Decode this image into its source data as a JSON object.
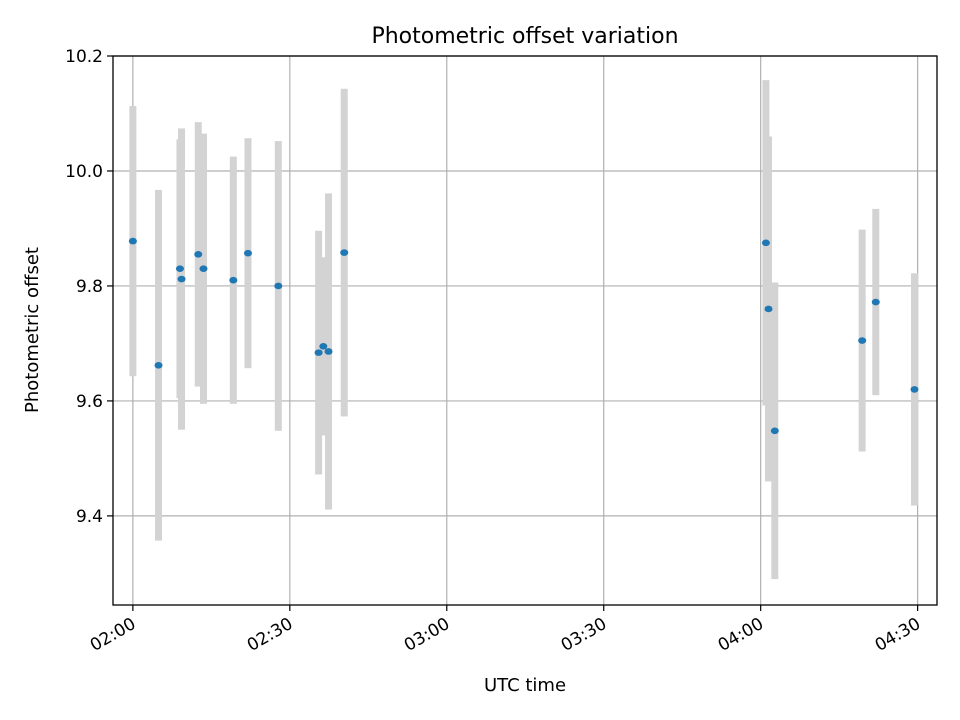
{
  "chart_data": {
    "type": "scatter",
    "title": "Photometric offset variation",
    "xlabel": "UTC time",
    "ylabel": "Photometric offset",
    "x_unit": "time of day (hours)",
    "xlim": [
      1.9367,
      4.5617
    ],
    "ylim": [
      9.245,
      10.2
    ],
    "x_ticks": [
      {
        "value": 2.0,
        "label": "02:00"
      },
      {
        "value": 2.5,
        "label": "02:30"
      },
      {
        "value": 3.0,
        "label": "03:00"
      },
      {
        "value": 3.5,
        "label": "03:30"
      },
      {
        "value": 4.0,
        "label": "04:00"
      },
      {
        "value": 4.5,
        "label": "04:30"
      }
    ],
    "y_ticks": [
      {
        "value": 9.4,
        "label": "9.4"
      },
      {
        "value": 9.6,
        "label": "9.6"
      },
      {
        "value": 9.8,
        "label": "9.8"
      },
      {
        "value": 10.0,
        "label": "10.0"
      },
      {
        "value": 10.2,
        "label": "10.2"
      }
    ],
    "grid": true,
    "colors": {
      "points": "#1f77b4",
      "error_bars": "#d3d3d3",
      "grid": "#b0b0b0"
    },
    "points": [
      {
        "x": 2.0,
        "y": 9.878,
        "err": 0.235
      },
      {
        "x": 2.0817,
        "y": 9.662,
        "err": 0.305
      },
      {
        "x": 2.15,
        "y": 9.83,
        "err": 0.225
      },
      {
        "x": 2.155,
        "y": 9.812,
        "err": 0.262
      },
      {
        "x": 2.2083,
        "y": 9.855,
        "err": 0.23
      },
      {
        "x": 2.225,
        "y": 9.83,
        "err": 0.235
      },
      {
        "x": 2.32,
        "y": 9.81,
        "err": 0.215
      },
      {
        "x": 2.3667,
        "y": 9.857,
        "err": 0.2
      },
      {
        "x": 2.4633,
        "y": 9.8,
        "err": 0.252
      },
      {
        "x": 2.5917,
        "y": 9.684,
        "err": 0.212
      },
      {
        "x": 2.6067,
        "y": 9.695,
        "err": 0.155
      },
      {
        "x": 2.6233,
        "y": 9.686,
        "err": 0.275
      },
      {
        "x": 2.6733,
        "y": 9.858,
        "err": 0.285
      },
      {
        "x": 4.0167,
        "y": 9.875,
        "err": 0.283
      },
      {
        "x": 4.025,
        "y": 9.76,
        "err": 0.3
      },
      {
        "x": 4.045,
        "y": 9.548,
        "err": 0.258
      },
      {
        "x": 4.3233,
        "y": 9.705,
        "err": 0.193
      },
      {
        "x": 4.3667,
        "y": 9.772,
        "err": 0.162
      },
      {
        "x": 4.49,
        "y": 9.62,
        "err": 0.202
      }
    ]
  }
}
